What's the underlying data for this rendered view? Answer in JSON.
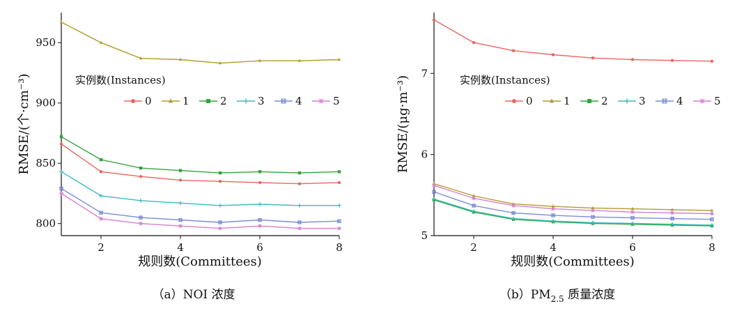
{
  "chart_data": [
    {
      "type": "line",
      "caption": "（a）NOI 浓度",
      "xlabel": "规则数(Committees)",
      "ylabel": "RMSE/(个·cm⁻³)",
      "xlim": [
        1,
        8
      ],
      "ylim": [
        790,
        975
      ],
      "xticks": [
        2,
        4,
        6,
        8
      ],
      "yticks": [
        800,
        850,
        900,
        950
      ],
      "legend_title": "实例数(Instances)",
      "x": [
        1,
        2,
        3,
        4,
        5,
        6,
        7,
        8
      ],
      "series": [
        {
          "name": "0",
          "color": "#e8675f",
          "marker": "circle",
          "values": [
            866,
            843,
            839,
            836,
            835,
            834,
            833,
            834
          ]
        },
        {
          "name": "1",
          "color": "#b39a2a",
          "marker": "triangle",
          "values": [
            967,
            950,
            937,
            936,
            933,
            935,
            935,
            936
          ]
        },
        {
          "name": "2",
          "color": "#33a33d",
          "marker": "square",
          "values": [
            872,
            853,
            846,
            844,
            842,
            843,
            842,
            843
          ]
        },
        {
          "name": "3",
          "color": "#3cbac0",
          "marker": "plus",
          "values": [
            843,
            823,
            819,
            817,
            815,
            816,
            815,
            815
          ]
        },
        {
          "name": "4",
          "color": "#7a8ed8",
          "marker": "xbox",
          "values": [
            829,
            809,
            805,
            803,
            801,
            803,
            801,
            802
          ]
        },
        {
          "name": "5",
          "color": "#d77fcf",
          "marker": "star",
          "values": [
            825,
            804,
            800,
            798,
            796,
            798,
            796,
            796
          ]
        }
      ]
    },
    {
      "type": "line",
      "caption": "（b）PM",
      "caption_sub": "2.5",
      "caption_tail": " 质量浓度",
      "xlabel": "规则数(Committees)",
      "ylabel": "RMSE/(μg·m⁻³)",
      "xlim": [
        1,
        8
      ],
      "ylim": [
        5,
        7.75
      ],
      "xticks": [
        2,
        4,
        6,
        8
      ],
      "yticks": [
        5,
        6,
        7
      ],
      "legend_title": "实例数(Instances)",
      "x": [
        1,
        2,
        3,
        4,
        5,
        6,
        7,
        8
      ],
      "series": [
        {
          "name": "0",
          "color": "#e8675f",
          "marker": "circle",
          "values": [
            7.66,
            7.38,
            7.28,
            7.23,
            7.19,
            7.17,
            7.16,
            7.15
          ]
        },
        {
          "name": "1",
          "color": "#b39a2a",
          "marker": "triangle",
          "values": [
            5.64,
            5.49,
            5.39,
            5.36,
            5.34,
            5.33,
            5.32,
            5.31
          ]
        },
        {
          "name": "2",
          "color": "#33a33d",
          "marker": "square",
          "values": [
            5.44,
            5.29,
            5.2,
            5.17,
            5.15,
            5.14,
            5.13,
            5.12
          ]
        },
        {
          "name": "3",
          "color": "#3cbac0",
          "marker": "plus",
          "values": [
            5.45,
            5.3,
            5.21,
            5.18,
            5.16,
            5.15,
            5.14,
            5.13
          ]
        },
        {
          "name": "4",
          "color": "#7a8ed8",
          "marker": "xbox",
          "values": [
            5.54,
            5.37,
            5.28,
            5.25,
            5.23,
            5.22,
            5.21,
            5.2
          ]
        },
        {
          "name": "5",
          "color": "#d77fcf",
          "marker": "star",
          "values": [
            5.62,
            5.46,
            5.37,
            5.33,
            5.31,
            5.29,
            5.28,
            5.27
          ]
        }
      ]
    }
  ]
}
